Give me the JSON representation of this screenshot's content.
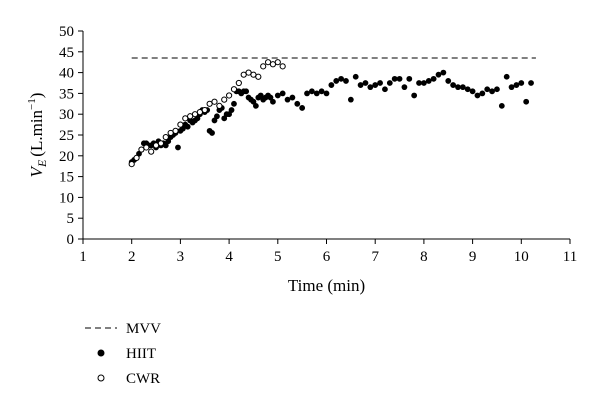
{
  "chart_data": {
    "type": "scatter",
    "xlabel": "Time (min)",
    "ylabel_main": "V",
    "ylabel_sub": "E",
    "ylabel_unit": "(L.min",
    "ylabel_exp": "−1",
    "ylabel_close": ")",
    "xlim": [
      1,
      11
    ],
    "ylim": [
      0,
      50
    ],
    "xticks": [
      1,
      2,
      3,
      4,
      5,
      6,
      7,
      8,
      9,
      10,
      11
    ],
    "yticks": [
      0,
      5,
      10,
      15,
      20,
      25,
      30,
      35,
      40,
      45,
      50
    ],
    "grid": false,
    "legend_position": "below-left",
    "series": [
      {
        "name": "MVV",
        "style": "dashed-line",
        "x": [
          2.0,
          10.3
        ],
        "y": [
          43.5,
          43.5
        ]
      },
      {
        "name": "HIIT",
        "style": "filled-circle",
        "x": [
          2.0,
          2.05,
          2.1,
          2.15,
          2.2,
          2.25,
          2.3,
          2.35,
          2.4,
          2.45,
          2.5,
          2.55,
          2.6,
          2.65,
          2.7,
          2.75,
          2.8,
          2.85,
          2.9,
          2.95,
          3.0,
          3.05,
          3.1,
          3.15,
          3.2,
          3.25,
          3.3,
          3.35,
          3.4,
          3.45,
          3.5,
          3.55,
          3.6,
          3.65,
          3.7,
          3.75,
          3.8,
          3.85,
          3.9,
          3.95,
          4.0,
          4.05,
          4.1,
          4.15,
          4.2,
          4.25,
          4.3,
          4.35,
          4.4,
          4.45,
          4.5,
          4.55,
          4.6,
          4.65,
          4.7,
          4.75,
          4.8,
          4.85,
          4.9,
          5.0,
          5.1,
          5.2,
          5.3,
          5.4,
          5.5,
          5.6,
          5.7,
          5.8,
          5.9,
          6.0,
          6.1,
          6.2,
          6.3,
          6.4,
          6.5,
          6.6,
          6.7,
          6.8,
          6.9,
          7.0,
          7.1,
          7.2,
          7.3,
          7.4,
          7.5,
          7.6,
          7.7,
          7.8,
          7.9,
          8.0,
          8.1,
          8.2,
          8.3,
          8.4,
          8.5,
          8.6,
          8.7,
          8.8,
          8.9,
          9.0,
          9.1,
          9.2,
          9.3,
          9.4,
          9.5,
          9.6,
          9.7,
          9.8,
          9.9,
          10.0,
          10.1,
          10.2
        ],
        "y": [
          18.5,
          19,
          19.5,
          20.5,
          21.5,
          23,
          23,
          22.5,
          22.5,
          23,
          22,
          23.5,
          22.5,
          23,
          22.5,
          23.5,
          24.5,
          25,
          25.5,
          22,
          26,
          26.5,
          27.5,
          27,
          28.5,
          28,
          28.5,
          29,
          30,
          31,
          30.5,
          31,
          26,
          25.5,
          28.5,
          29.5,
          31,
          31.5,
          29,
          30,
          30,
          31,
          32.5,
          35.5,
          35.5,
          35,
          35.5,
          35.5,
          34,
          33.5,
          33,
          32,
          34,
          34.5,
          33.5,
          34,
          34.5,
          34,
          33,
          34.5,
          35,
          33.5,
          34,
          32.5,
          31.5,
          35,
          35.5,
          35,
          35.5,
          35,
          37,
          38,
          38.5,
          38,
          33.5,
          39,
          37,
          37.5,
          36.5,
          37,
          37.5,
          36,
          37.5,
          38.5,
          38.5,
          36.5,
          38.5,
          34.5,
          37.5,
          37.5,
          38,
          38.5,
          39.5,
          40,
          38,
          37,
          36.5,
          36.5,
          36,
          35.5,
          34.5,
          35,
          36,
          35.5,
          36,
          32,
          39,
          36.5,
          37,
          37.5,
          33,
          37.5
        ]
      },
      {
        "name": "CWR",
        "style": "open-circle",
        "x": [
          2.0,
          2.1,
          2.2,
          2.3,
          2.4,
          2.5,
          2.6,
          2.7,
          2.8,
          2.9,
          3.0,
          3.1,
          3.2,
          3.3,
          3.4,
          3.5,
          3.6,
          3.7,
          3.8,
          3.9,
          4.0,
          4.1,
          4.2,
          4.3,
          4.4,
          4.5,
          4.6,
          4.7,
          4.8,
          4.9,
          5.0,
          5.1
        ],
        "y": [
          18,
          19.5,
          21.5,
          22,
          21,
          22.5,
          23,
          24.5,
          25.5,
          26,
          27.5,
          29,
          29.5,
          30,
          30.5,
          31,
          32.5,
          33,
          32,
          33.5,
          34.5,
          36,
          37.5,
          39.5,
          40,
          39.5,
          39,
          41.5,
          42.5,
          42,
          42.5,
          41.5
        ]
      }
    ]
  }
}
